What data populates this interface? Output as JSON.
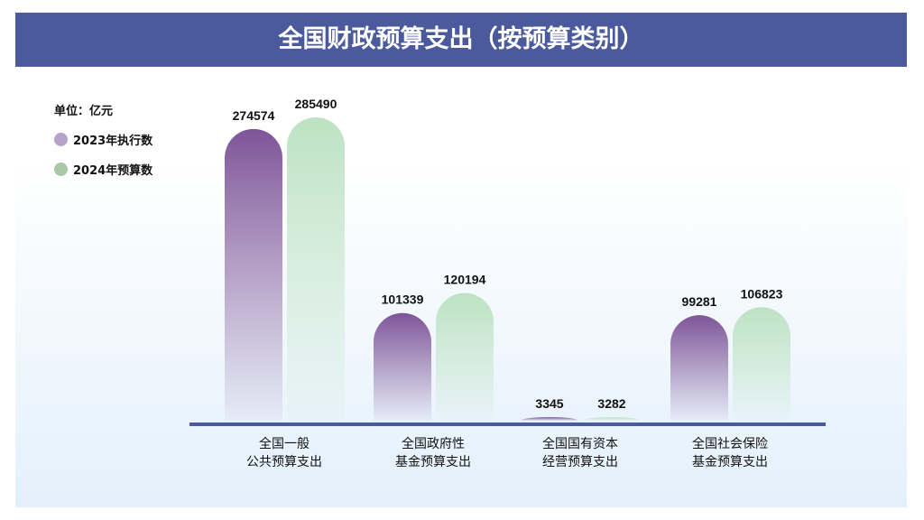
{
  "title": "全国财政预算支出（按预算类别）",
  "chart_data": {
    "type": "bar",
    "title": "全国财政预算支出（按预算类别）",
    "unit": "单位：亿元",
    "categories": [
      [
        "全国一般",
        "公共预算支出"
      ],
      [
        "全国政府性",
        "基金预算支出"
      ],
      [
        "全国国有资本",
        "经营预算支出"
      ],
      [
        "全国社会保险",
        "基金预算支出"
      ]
    ],
    "series": [
      {
        "name": "2023年执行数",
        "values": [
          274574,
          101339,
          3345,
          99281
        ],
        "color": "#7e5599",
        "legend_color": "#b6a3cc"
      },
      {
        "name": "2024年预算数",
        "values": [
          285490,
          120194,
          3282,
          106823
        ],
        "color": "#bde2c3",
        "legend_color": "#a9c9a6"
      }
    ],
    "axis_color": "#4b5a9c",
    "grid": false,
    "legend": "top-left"
  }
}
